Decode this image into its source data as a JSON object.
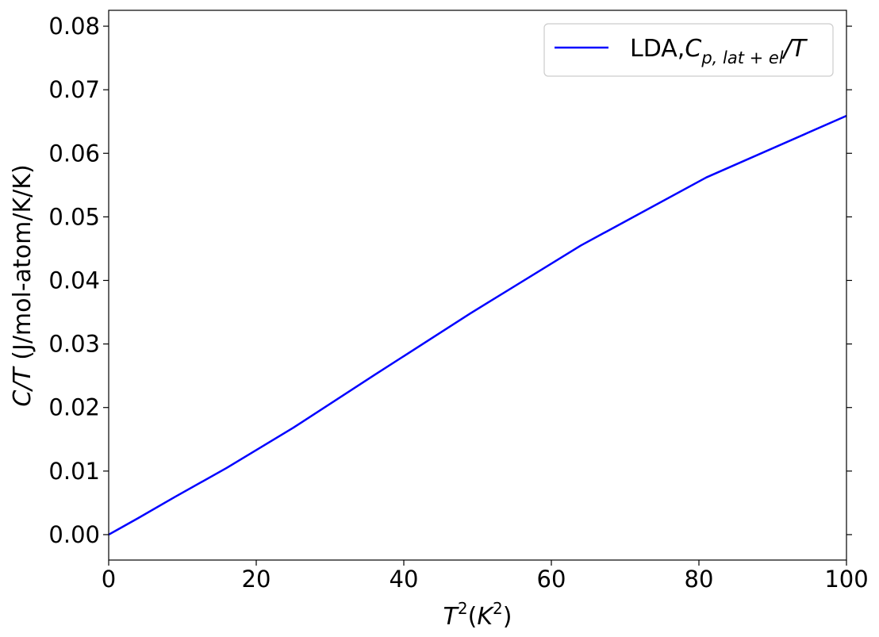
{
  "chart_data": {
    "type": "line",
    "title": "",
    "xlabel": {
      "base": "T",
      "sup": "2",
      "open": "(",
      "inner": "K",
      "inner_sup": "2",
      "close": ")"
    },
    "ylabel": {
      "italic": "C/T",
      "rest": " (J/mol-atom/K/K)"
    },
    "xlim": [
      0,
      100
    ],
    "ylim": [
      -0.004,
      0.0825
    ],
    "x_ticks": [
      0,
      20,
      40,
      60,
      80,
      100
    ],
    "x_tick_labels": [
      "0",
      "20",
      "40",
      "60",
      "80",
      "100"
    ],
    "y_ticks": [
      0.0,
      0.01,
      0.02,
      0.03,
      0.04,
      0.05,
      0.06,
      0.07,
      0.08
    ],
    "y_tick_labels": [
      "0.00",
      "0.01",
      "0.02",
      "0.03",
      "0.04",
      "0.05",
      "0.06",
      "0.07",
      "0.08"
    ],
    "grid": false,
    "legend_position": "top-right",
    "series": [
      {
        "name": {
          "prefix": "LDA,",
          "c": "C",
          "sub": "p, lat + el",
          "suffix": "/T"
        },
        "color": "#0000ff",
        "x": [
          0,
          1,
          4,
          9,
          16,
          25,
          36,
          49,
          64,
          81,
          100
        ],
        "y": [
          0.0,
          0.00065,
          0.0026,
          0.00595,
          0.0105,
          0.0168,
          0.0251,
          0.0348,
          0.0455,
          0.0562,
          0.0659
        ]
      }
    ]
  }
}
